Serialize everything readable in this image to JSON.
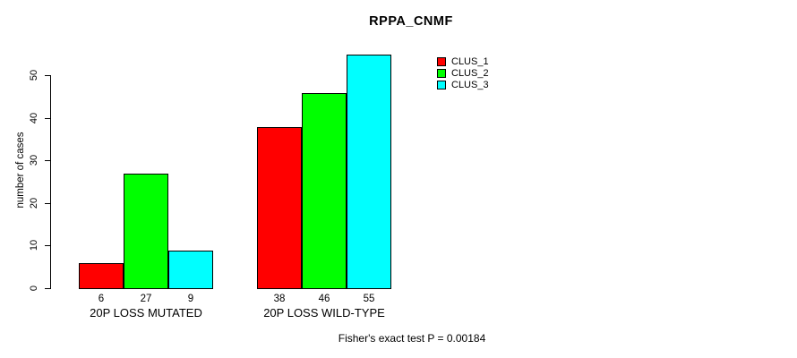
{
  "title": "RPPA_CNMF",
  "footer": "Fisher's exact test P = 0.00184",
  "chart_data": {
    "type": "bar",
    "title": "RPPA_CNMF",
    "xlabel": "",
    "ylabel": "number of cases",
    "ylim": [
      0,
      55
    ],
    "yticks": [
      0,
      10,
      20,
      30,
      40,
      50
    ],
    "categories": [
      "20P LOSS MUTATED",
      "20P LOSS WILD-TYPE"
    ],
    "series": [
      {
        "name": "CLUS_1",
        "color": "#ff0000",
        "values": [
          6,
          38
        ]
      },
      {
        "name": "CLUS_2",
        "color": "#00ff00",
        "values": [
          27,
          46
        ]
      },
      {
        "name": "CLUS_3",
        "color": "#00ffff",
        "values": [
          9,
          55
        ]
      }
    ],
    "bar_labels_shown": true,
    "grid": false,
    "legend_position": "top-right",
    "annotation": "Fisher's exact test P = 0.00184",
    "axis_color": "#000000",
    "bar_border_color": "#000000",
    "background_color": "#ffffff"
  }
}
